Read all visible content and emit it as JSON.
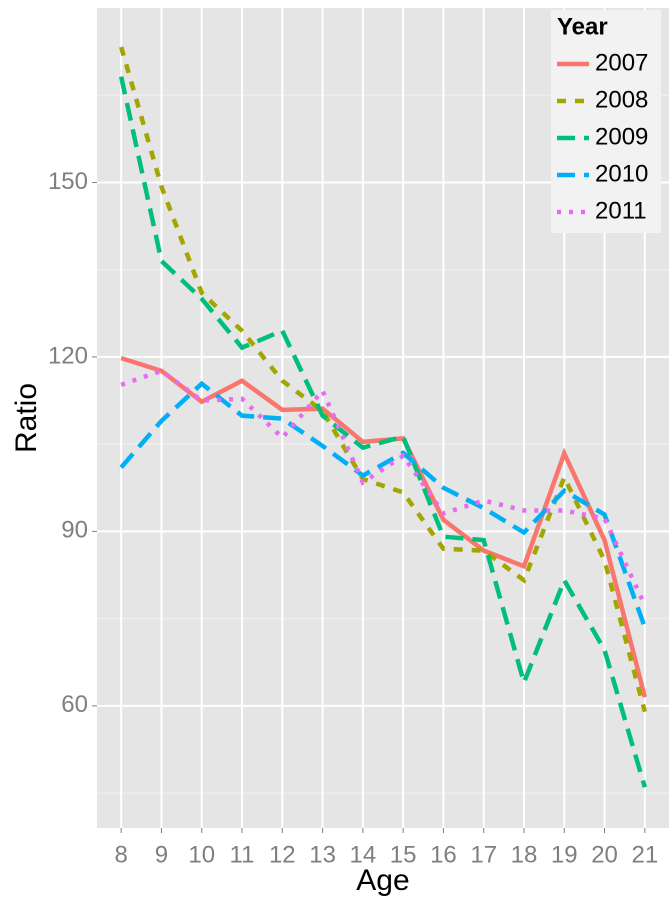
{
  "chart_data": {
    "type": "line",
    "x_label": "Age",
    "y_label": "Ratio",
    "categories": [
      "8",
      "9",
      "10",
      "11",
      "12",
      "13",
      "14",
      "15",
      "16",
      "17",
      "18",
      "19",
      "20",
      "21"
    ],
    "ylim": [
      39,
      180
    ],
    "yticks": [
      60,
      90,
      120,
      150
    ],
    "grid": true,
    "legend_title": "Year",
    "legend_position": "top-right",
    "series": [
      {
        "name": "2007",
        "color": "#f8766d",
        "linetype": "solid",
        "values": [
          119.8,
          117.6,
          112.3,
          115.9,
          110.9,
          111.1,
          105.4,
          106,
          92,
          86.7,
          84,
          103.4,
          88.5,
          61.5
        ]
      },
      {
        "name": "2008",
        "color": "#a3a500",
        "linetype": "dashed",
        "values": [
          173.3,
          149.3,
          131,
          124.5,
          115.9,
          110.7,
          99,
          96.7,
          87,
          86.7,
          81.6,
          99.3,
          85,
          59
        ]
      },
      {
        "name": "2009",
        "color": "#00bf7d",
        "linetype": "longdash",
        "values": [
          168.2,
          136.5,
          130,
          121.6,
          124.5,
          109.9,
          104.4,
          106.3,
          89.1,
          88.5,
          64,
          81.6,
          69.6,
          46
        ]
      },
      {
        "name": "2010",
        "color": "#00b0f6",
        "linetype": "longdash",
        "values": [
          101,
          109,
          115.4,
          109.9,
          109.4,
          104.7,
          99.6,
          103.5,
          97.5,
          94,
          89.8,
          97,
          92.9,
          73.5
        ]
      },
      {
        "name": "2011",
        "color": "#e76bf3",
        "linetype": "dotted",
        "values": [
          115.2,
          117.6,
          112.5,
          112.8,
          106.1,
          114.2,
          98.4,
          103,
          93.1,
          95.3,
          93.6,
          93.6,
          92.2,
          77.3
        ]
      }
    ]
  }
}
